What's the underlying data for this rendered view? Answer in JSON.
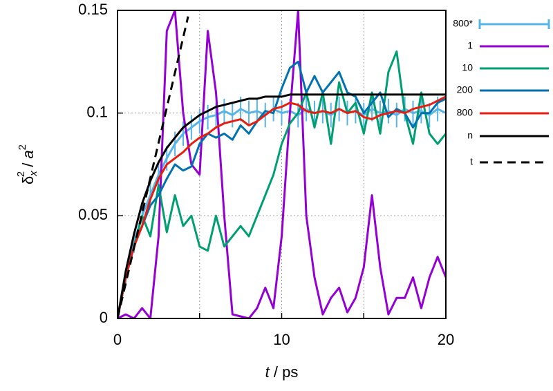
{
  "chart_data": {
    "type": "line",
    "xlabel": [
      "t",
      " / ps"
    ],
    "ylabel": [
      "δ",
      "x",
      "2",
      " / ",
      "a",
      "2"
    ],
    "xlim": [
      0,
      20
    ],
    "xticks": [
      0,
      10,
      20
    ],
    "x_minor_ticks": [
      5,
      15
    ],
    "ylim": [
      0,
      0.15
    ],
    "yticks": [
      0,
      0.05,
      0.1,
      0.15
    ],
    "grid": true,
    "legend": "outside-right",
    "x": [
      0,
      0.5,
      1,
      1.5,
      2,
      2.5,
      3,
      3.5,
      4,
      4.5,
      5,
      5.5,
      6,
      6.5,
      7,
      7.5,
      8,
      8.5,
      9,
      9.5,
      10,
      10.5,
      11,
      11.5,
      12,
      12.5,
      13,
      13.5,
      14,
      14.5,
      15,
      15.5,
      16,
      16.5,
      17,
      17.5,
      18,
      18.5,
      19,
      19.5,
      20
    ],
    "series": [
      {
        "name": "800*",
        "color": "#56b4e9",
        "style": "errorbars",
        "values": [
          0,
          0.02,
          0.037,
          0.05,
          0.06,
          0.07,
          0.078,
          0.085,
          0.09,
          0.093,
          0.096,
          0.098,
          0.099,
          0.101,
          0.099,
          0.102,
          0.1,
          0.101,
          0.099,
          0.102,
          0.1,
          0.101,
          0.099,
          0.102,
          0.1,
          0.101,
          0.099,
          0.102,
          0.1,
          0.101,
          0.099,
          0.102,
          0.1,
          0.101,
          0.099,
          0.102,
          0.1,
          0.101,
          0.099,
          0.102,
          0.1
        ],
        "errors": [
          0,
          0.004,
          0.005,
          0.006,
          0.006,
          0.006,
          0.006,
          0.006,
          0.006,
          0.006,
          0.006,
          0.006,
          0.006,
          0.006,
          0.006,
          0.006,
          0.006,
          0.006,
          0.006,
          0.006,
          0.006,
          0.006,
          0.006,
          0.006,
          0.006,
          0.006,
          0.006,
          0.006,
          0.006,
          0.006,
          0.006,
          0.006,
          0.006,
          0.006,
          0.006,
          0.006,
          0.006,
          0.006,
          0.006,
          0.006,
          0.006
        ]
      },
      {
        "name": "1",
        "color": "#9400d3",
        "style": "solid",
        "values": [
          0,
          0.002,
          0,
          0.005,
          0,
          0.04,
          0.14,
          0.15,
          0.1,
          0.075,
          0.07,
          0.14,
          0.11,
          0.05,
          0.002,
          0.001,
          0,
          0.005,
          0.015,
          0.005,
          0.04,
          0.1,
          0.15,
          0.05,
          0.02,
          0.002,
          0.01,
          0.015,
          0.003,
          0.01,
          0.025,
          0.06,
          0.025,
          0.002,
          0.01,
          0.01,
          0.02,
          0.005,
          0.02,
          0.03,
          0.02
        ]
      },
      {
        "name": "10",
        "color": "#009e73",
        "style": "solid",
        "values": [
          0,
          0.02,
          0.035,
          0.05,
          0.04,
          0.065,
          0.042,
          0.06,
          0.045,
          0.05,
          0.035,
          0.033,
          0.05,
          0.035,
          0.04,
          0.045,
          0.04,
          0.05,
          0.06,
          0.07,
          0.085,
          0.095,
          0.1,
          0.11,
          0.093,
          0.11,
          0.085,
          0.115,
          0.1,
          0.105,
          0.09,
          0.11,
          0.09,
          0.12,
          0.13,
          0.1,
          0.085,
          0.11,
          0.09,
          0.085,
          0.09
        ]
      },
      {
        "name": "200",
        "color": "#0072b2",
        "style": "solid",
        "values": [
          0,
          0.02,
          0.035,
          0.045,
          0.055,
          0.06,
          0.068,
          0.075,
          0.072,
          0.074,
          0.085,
          0.09,
          0.088,
          0.09,
          0.087,
          0.094,
          0.09,
          0.096,
          0.101,
          0.1,
          0.112,
          0.122,
          0.125,
          0.11,
          0.118,
          0.11,
          0.115,
          0.12,
          0.11,
          0.108,
          0.1,
          0.105,
          0.11,
          0.098,
          0.102,
          0.1,
          0.093,
          0.1,
          0.1,
          0.105,
          0.107
        ]
      },
      {
        "name": "800",
        "color": "#e51e10",
        "style": "solid",
        "values": [
          0,
          0.02,
          0.035,
          0.045,
          0.058,
          0.068,
          0.075,
          0.078,
          0.081,
          0.085,
          0.088,
          0.09,
          0.093,
          0.095,
          0.096,
          0.097,
          0.094,
          0.096,
          0.099,
          0.102,
          0.103,
          0.105,
          0.104,
          0.101,
          0.1,
          0.101,
          0.1,
          0.102,
          0.1,
          0.101,
          0.098,
          0.097,
          0.099,
          0.1,
          0.101,
          0.1,
          0.102,
          0.103,
          0.104,
          0.106,
          0.108
        ]
      },
      {
        "name": "n",
        "color": "#000000",
        "style": "solid",
        "values": [
          0,
          0.023,
          0.041,
          0.056,
          0.067,
          0.076,
          0.083,
          0.088,
          0.093,
          0.096,
          0.099,
          0.101,
          0.103,
          0.104,
          0.105,
          0.106,
          0.107,
          0.107,
          0.108,
          0.108,
          0.108,
          0.109,
          0.109,
          0.109,
          0.109,
          0.109,
          0.109,
          0.109,
          0.109,
          0.109,
          0.109,
          0.109,
          0.109,
          0.109,
          0.109,
          0.109,
          0.109,
          0.109,
          0.109,
          0.109,
          0.109
        ]
      },
      {
        "name": "t",
        "color": "#000000",
        "style": "dashed",
        "x": [
          0,
          4.3
        ],
        "values": [
          0,
          0.147
        ]
      }
    ]
  }
}
